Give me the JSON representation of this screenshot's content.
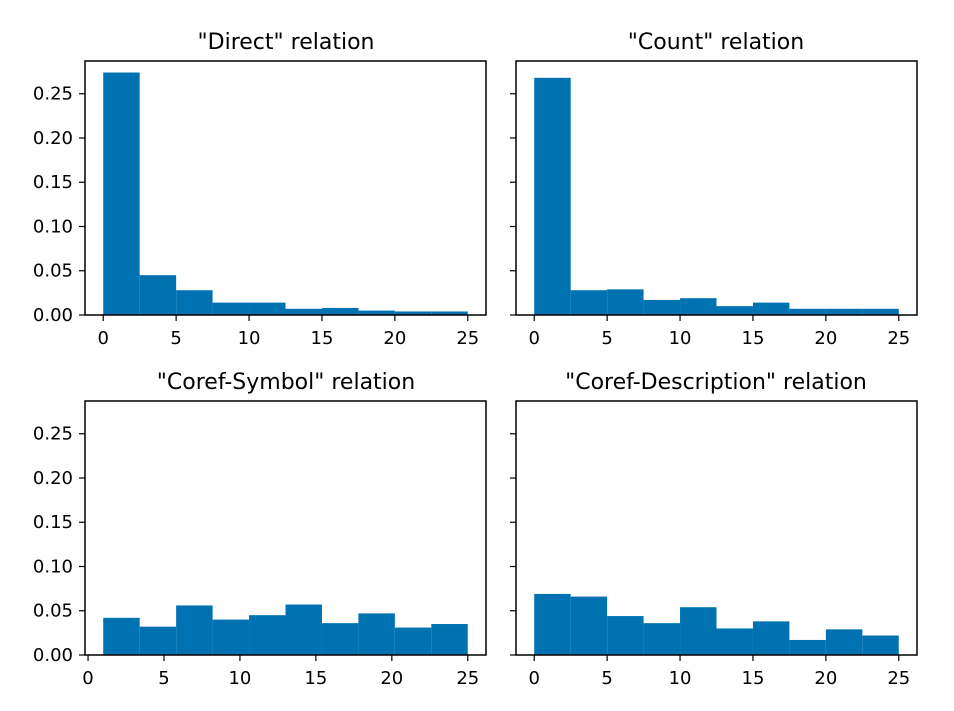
{
  "colors": {
    "bar": "#0072B2",
    "axis": "#000000",
    "background": "#ffffff"
  },
  "y_ticks": [
    "0.00",
    "0.05",
    "0.10",
    "0.15",
    "0.20",
    "0.25"
  ],
  "x_ticks": [
    "0",
    "5",
    "10",
    "15",
    "20",
    "25"
  ],
  "chart_data": [
    {
      "type": "bar",
      "title": "\"Direct\" relation",
      "xlim": [
        -1.25,
        26.25
      ],
      "ylim": [
        0,
        0.287
      ],
      "bins": [
        {
          "x0": 0.0,
          "x1": 2.5,
          "value": 0.274
        },
        {
          "x0": 2.5,
          "x1": 5.0,
          "value": 0.045
        },
        {
          "x0": 5.0,
          "x1": 7.5,
          "value": 0.028
        },
        {
          "x0": 7.5,
          "x1": 10.0,
          "value": 0.014
        },
        {
          "x0": 10.0,
          "x1": 12.5,
          "value": 0.014
        },
        {
          "x0": 12.5,
          "x1": 15.0,
          "value": 0.007
        },
        {
          "x0": 15.0,
          "x1": 17.5,
          "value": 0.008
        },
        {
          "x0": 17.5,
          "x1": 20.0,
          "value": 0.005
        },
        {
          "x0": 20.0,
          "x1": 22.5,
          "value": 0.004
        },
        {
          "x0": 22.5,
          "x1": 25.0,
          "value": 0.004
        }
      ]
    },
    {
      "type": "bar",
      "title": "\"Count\" relation",
      "xlim": [
        -1.25,
        26.25
      ],
      "ylim": [
        0,
        0.287
      ],
      "bins": [
        {
          "x0": 0.0,
          "x1": 2.5,
          "value": 0.268
        },
        {
          "x0": 2.5,
          "x1": 5.0,
          "value": 0.028
        },
        {
          "x0": 5.0,
          "x1": 7.5,
          "value": 0.029
        },
        {
          "x0": 7.5,
          "x1": 10.0,
          "value": 0.017
        },
        {
          "x0": 10.0,
          "x1": 12.5,
          "value": 0.019
        },
        {
          "x0": 12.5,
          "x1": 15.0,
          "value": 0.01
        },
        {
          "x0": 15.0,
          "x1": 17.5,
          "value": 0.014
        },
        {
          "x0": 17.5,
          "x1": 20.0,
          "value": 0.007
        },
        {
          "x0": 20.0,
          "x1": 22.5,
          "value": 0.007
        },
        {
          "x0": 22.5,
          "x1": 25.0,
          "value": 0.007
        }
      ]
    },
    {
      "type": "bar",
      "title": "\"Coref-Symbol\" relation",
      "xlim": [
        -0.2,
        26.2
      ],
      "ylim": [
        0,
        0.287
      ],
      "bins": [
        {
          "x0": 1.0,
          "x1": 3.4,
          "value": 0.042
        },
        {
          "x0": 3.4,
          "x1": 5.8,
          "value": 0.032
        },
        {
          "x0": 5.8,
          "x1": 8.2,
          "value": 0.056
        },
        {
          "x0": 8.2,
          "x1": 10.6,
          "value": 0.04
        },
        {
          "x0": 10.6,
          "x1": 13.0,
          "value": 0.045
        },
        {
          "x0": 13.0,
          "x1": 15.4,
          "value": 0.057
        },
        {
          "x0": 15.4,
          "x1": 17.8,
          "value": 0.036
        },
        {
          "x0": 17.8,
          "x1": 20.2,
          "value": 0.047
        },
        {
          "x0": 20.2,
          "x1": 22.6,
          "value": 0.031
        },
        {
          "x0": 22.6,
          "x1": 25.0,
          "value": 0.035
        }
      ]
    },
    {
      "type": "bar",
      "title": "\"Coref-Description\" relation",
      "xlim": [
        -1.25,
        26.25
      ],
      "ylim": [
        0,
        0.287
      ],
      "bins": [
        {
          "x0": 0.0,
          "x1": 2.5,
          "value": 0.069
        },
        {
          "x0": 2.5,
          "x1": 5.0,
          "value": 0.066
        },
        {
          "x0": 5.0,
          "x1": 7.5,
          "value": 0.044
        },
        {
          "x0": 7.5,
          "x1": 10.0,
          "value": 0.036
        },
        {
          "x0": 10.0,
          "x1": 12.5,
          "value": 0.054
        },
        {
          "x0": 12.5,
          "x1": 15.0,
          "value": 0.03
        },
        {
          "x0": 15.0,
          "x1": 17.5,
          "value": 0.038
        },
        {
          "x0": 17.5,
          "x1": 20.0,
          "value": 0.017
        },
        {
          "x0": 20.0,
          "x1": 22.5,
          "value": 0.029
        },
        {
          "x0": 22.5,
          "x1": 25.0,
          "value": 0.022
        }
      ]
    }
  ]
}
